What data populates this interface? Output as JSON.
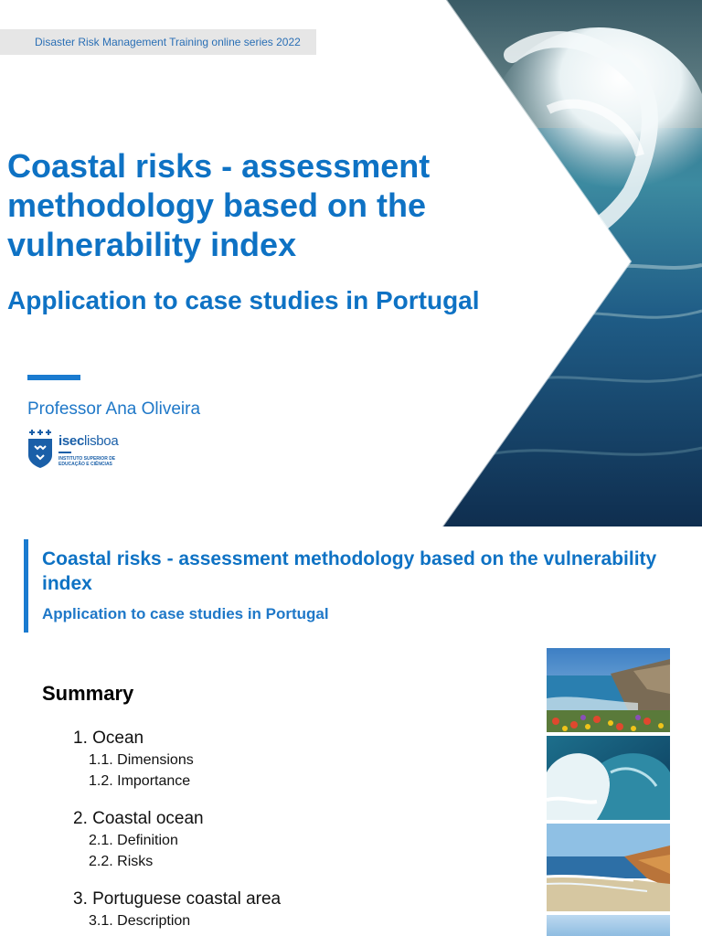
{
  "slide1": {
    "series_label": "Disaster Risk Management Training online series 2022",
    "title": "Coastal risks - assessment methodology based on the vulnerability index",
    "subtitle": "Application to case studies in Portugal",
    "author": "Professor Ana Oliveira",
    "logo": {
      "name_bold": "isec",
      "name_light": "lisboa",
      "sub_line1": "INSTITUTO SUPERIOR DE",
      "sub_line2": "EDUCAÇÃO E CIÊNCIAS"
    },
    "image": "ocean-wave-image"
  },
  "slide2": {
    "title": "Coastal risks - assessment methodology based on the vulnerability index",
    "subtitle": "Application to case studies in Portugal",
    "summary_heading": "Summary",
    "toc": [
      {
        "label": "1. Ocean",
        "items": [
          "1.1. Dimensions",
          "1.2. Importance"
        ]
      },
      {
        "label": "2. Coastal ocean",
        "items": [
          "2.1. Definition",
          "2.2. Risks"
        ]
      },
      {
        "label": "3. Portuguese coastal area",
        "items": [
          "3.1. Description"
        ]
      }
    ],
    "thumbnails": [
      "rocky-coast-flowers-photo",
      "breaking-wave-photo",
      "sandy-beach-cliffs-photo",
      "blue-sky-photo"
    ]
  },
  "colors": {
    "primary_blue": "#0e72c4",
    "accent_blue": "#1a7bd0",
    "series_bar_gray": "#e6e6e6"
  }
}
